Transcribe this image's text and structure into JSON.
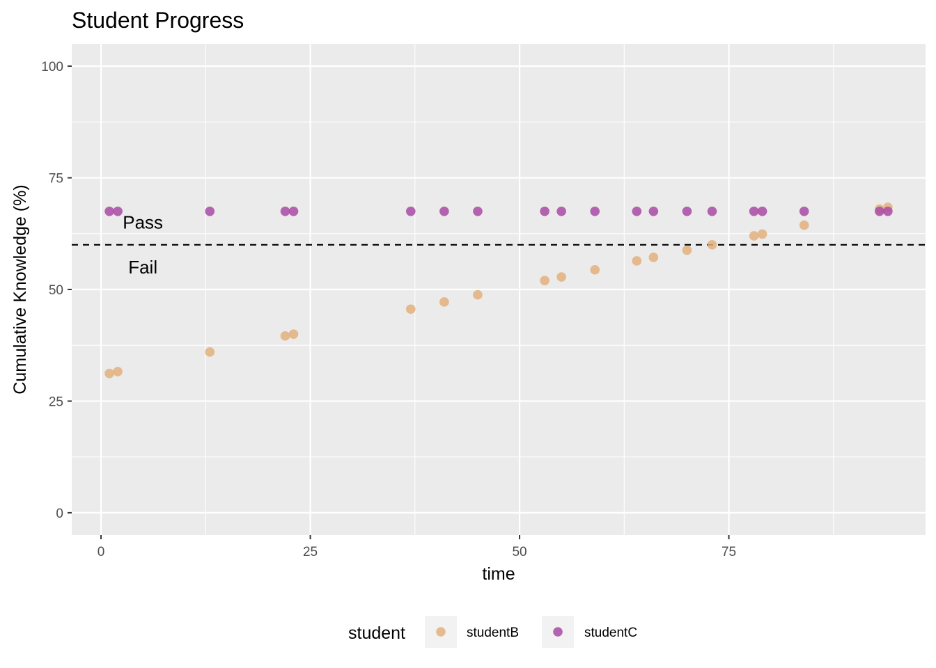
{
  "chart_data": {
    "type": "scatter",
    "title": "Student Progress",
    "xlabel": "time",
    "ylabel": "Cumulative Knowledge (%)",
    "xlim": [
      -3.5,
      98.5
    ],
    "ylim": [
      -5,
      105
    ],
    "x_ticks": [
      0,
      25,
      50,
      75
    ],
    "y_ticks": [
      0,
      25,
      50,
      75,
      100
    ],
    "grid": true,
    "threshold": {
      "y": 60,
      "style": "dashed",
      "color": "#000000"
    },
    "annotations": [
      {
        "text": "Pass",
        "x": 5,
        "y": 65
      },
      {
        "text": "Fail",
        "x": 5,
        "y": 55
      }
    ],
    "legend": {
      "title": "student",
      "position": "bottom"
    },
    "series": [
      {
        "name": "studentB",
        "color": "#E3B07D",
        "points": [
          [
            1,
            31.2
          ],
          [
            2,
            31.6
          ],
          [
            13,
            36
          ],
          [
            22,
            39.6
          ],
          [
            23,
            40
          ],
          [
            37,
            45.6
          ],
          [
            41,
            47.2
          ],
          [
            45,
            48.8
          ],
          [
            53,
            52
          ],
          [
            55,
            52.8
          ],
          [
            59,
            54.4
          ],
          [
            64,
            56.4
          ],
          [
            66,
            57.2
          ],
          [
            70,
            58.8
          ],
          [
            73,
            60
          ],
          [
            78,
            62
          ],
          [
            79,
            62.4
          ],
          [
            84,
            64.4
          ],
          [
            93,
            68
          ],
          [
            94,
            68.4
          ]
        ]
      },
      {
        "name": "studentC",
        "color": "#A94AA4",
        "points": [
          [
            1,
            67.5
          ],
          [
            2,
            67.5
          ],
          [
            13,
            67.5
          ],
          [
            22,
            67.5
          ],
          [
            23,
            67.5
          ],
          [
            37,
            67.5
          ],
          [
            41,
            67.5
          ],
          [
            45,
            67.5
          ],
          [
            53,
            67.5
          ],
          [
            55,
            67.5
          ],
          [
            59,
            67.5
          ],
          [
            64,
            67.5
          ],
          [
            66,
            67.5
          ],
          [
            70,
            67.5
          ],
          [
            73,
            67.5
          ],
          [
            78,
            67.5
          ],
          [
            79,
            67.5
          ],
          [
            84,
            67.5
          ],
          [
            93,
            67.5
          ],
          [
            94,
            67.5
          ]
        ]
      }
    ]
  }
}
